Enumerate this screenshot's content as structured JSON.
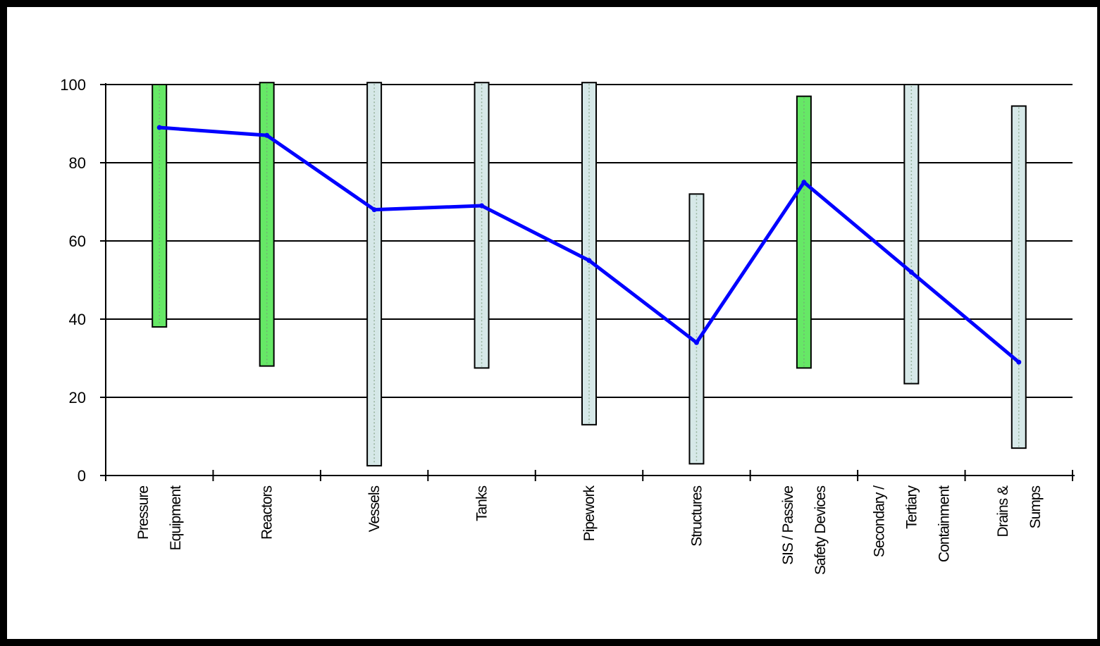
{
  "chart_data": {
    "type": "bar",
    "subtype": "floating range bars with line overlay",
    "categories": [
      [
        "Pressure",
        "Equipment"
      ],
      [
        "Reactors"
      ],
      [
        "Vessels"
      ],
      [
        "Tanks"
      ],
      [
        "Pipework"
      ],
      [
        "Structures"
      ],
      [
        "SIS / Passive",
        "Safety Devices"
      ],
      [
        "Secondary /",
        "Tertiary",
        "Containment"
      ],
      [
        "Drains &",
        "Sumps"
      ]
    ],
    "ranges": [
      {
        "low": 38,
        "high": 100,
        "color": "#66e866"
      },
      {
        "low": 28,
        "high": 100.5,
        "color": "#66e866"
      },
      {
        "low": 2.5,
        "high": 100.5,
        "color": "#d6e8e8"
      },
      {
        "low": 27.5,
        "high": 100.5,
        "color": "#d6e8e8"
      },
      {
        "low": 13,
        "high": 100.5,
        "color": "#d6e8e8"
      },
      {
        "low": 3,
        "high": 72,
        "color": "#d6e8e8"
      },
      {
        "low": 27.5,
        "high": 97,
        "color": "#66e866"
      },
      {
        "low": 23.5,
        "high": 100,
        "color": "#d6e8e8"
      },
      {
        "low": 7,
        "high": 94.5,
        "color": "#d6e8e8"
      }
    ],
    "line_values": [
      89,
      87,
      68,
      69,
      55,
      34,
      75,
      52,
      29
    ],
    "line_color": "#0000ff",
    "ylim": [
      0,
      100
    ],
    "yticks": [
      "0",
      "20",
      "40",
      "60",
      "80",
      "100"
    ],
    "ytick_values": [
      0,
      20,
      40,
      60,
      80,
      100
    ],
    "grid": true,
    "legend": "none"
  }
}
